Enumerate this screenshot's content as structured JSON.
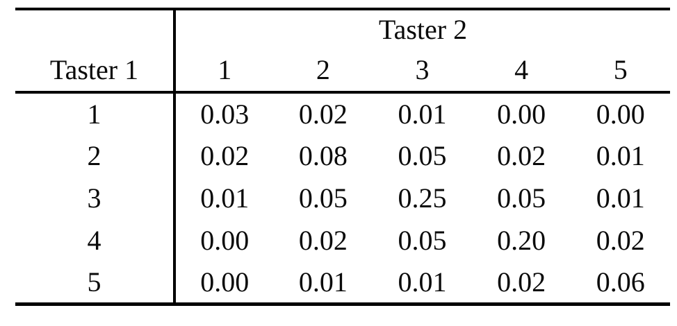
{
  "table": {
    "col_group_header": "Taster 2",
    "row_group_header": "Taster 1",
    "column_labels": [
      "1",
      "2",
      "3",
      "4",
      "5"
    ],
    "rows": [
      {
        "label": "1",
        "values": [
          "0.03",
          "0.02",
          "0.01",
          "0.00",
          "0.00"
        ]
      },
      {
        "label": "2",
        "values": [
          "0.02",
          "0.08",
          "0.05",
          "0.02",
          "0.01"
        ]
      },
      {
        "label": "3",
        "values": [
          "0.01",
          "0.05",
          "0.25",
          "0.05",
          "0.01"
        ]
      },
      {
        "label": "4",
        "values": [
          "0.00",
          "0.02",
          "0.05",
          "0.20",
          "0.02"
        ]
      },
      {
        "label": "5",
        "values": [
          "0.00",
          "0.01",
          "0.01",
          "0.02",
          "0.06"
        ]
      }
    ]
  },
  "colors": {
    "text": "#0a0a0a",
    "rule": "#000000",
    "background": "#ffffff"
  },
  "chart_data": {
    "type": "table",
    "row_variable": "Taster 1",
    "column_variable": "Taster 2",
    "row_categories": [
      1,
      2,
      3,
      4,
      5
    ],
    "column_categories": [
      1,
      2,
      3,
      4,
      5
    ],
    "values": [
      [
        0.03,
        0.02,
        0.01,
        0.0,
        0.0
      ],
      [
        0.02,
        0.08,
        0.05,
        0.02,
        0.01
      ],
      [
        0.01,
        0.05,
        0.25,
        0.05,
        0.01
      ],
      [
        0.0,
        0.02,
        0.05,
        0.2,
        0.02
      ],
      [
        0.0,
        0.01,
        0.01,
        0.02,
        0.06
      ]
    ]
  }
}
